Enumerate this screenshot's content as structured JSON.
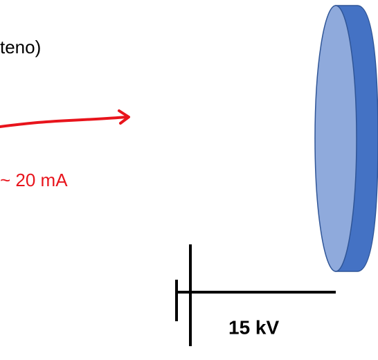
{
  "labels": {
    "fragment": "teno)",
    "current": "~ 20 mA",
    "voltage": "15 kV"
  }
}
